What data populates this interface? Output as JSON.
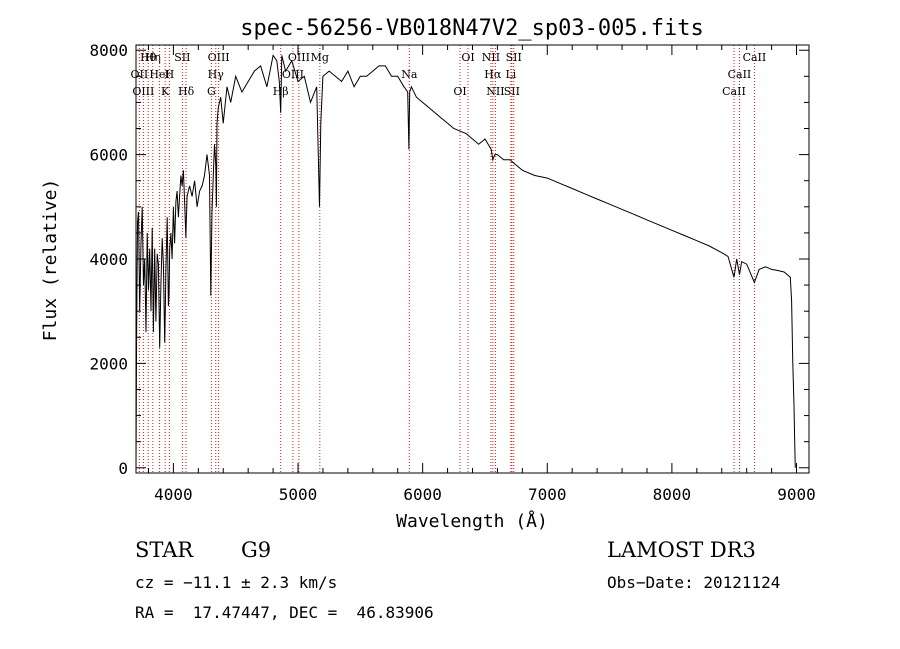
{
  "chart_data": {
    "type": "line",
    "title": "spec-56256-VB018N47V2_sp03-005.fits",
    "xlabel": "Wavelength (Å)",
    "ylabel": "Flux (relative)",
    "xlim": [
      3700,
      9100
    ],
    "ylim": [
      -100,
      8100
    ],
    "xticks": [
      4000,
      5000,
      6000,
      7000,
      8000,
      9000
    ],
    "yticks": [
      0,
      2000,
      4000,
      6000,
      8000
    ],
    "grid": false,
    "series": [
      {
        "name": "flux",
        "x": [
          3700,
          3705,
          3712,
          3720,
          3730,
          3740,
          3750,
          3760,
          3770,
          3780,
          3790,
          3800,
          3810,
          3820,
          3830,
          3840,
          3850,
          3860,
          3870,
          3880,
          3890,
          3900,
          3910,
          3920,
          3930,
          3935,
          3940,
          3950,
          3960,
          3965,
          3970,
          3980,
          3990,
          4000,
          4010,
          4020,
          4030,
          4040,
          4050,
          4060,
          4070,
          4080,
          4090,
          4100,
          4102,
          4110,
          4120,
          4130,
          4150,
          4170,
          4190,
          4210,
          4230,
          4250,
          4270,
          4290,
          4300,
          4310,
          4320,
          4330,
          4340,
          4345,
          4350,
          4360,
          4380,
          4400,
          4430,
          4460,
          4500,
          4550,
          4600,
          4650,
          4700,
          4750,
          4800,
          4830,
          4850,
          4861,
          4870,
          4900,
          4950,
          5000,
          5050,
          5100,
          5150,
          5172,
          5183,
          5200,
          5250,
          5300,
          5350,
          5400,
          5450,
          5500,
          5550,
          5600,
          5650,
          5700,
          5750,
          5800,
          5850,
          5880,
          5890,
          5896,
          5910,
          5950,
          6000,
          6050,
          6100,
          6150,
          6200,
          6250,
          6300,
          6350,
          6400,
          6450,
          6500,
          6550,
          6563,
          6580,
          6600,
          6650,
          6700,
          6750,
          6800,
          6900,
          7000,
          7100,
          7200,
          7300,
          7400,
          7500,
          7600,
          7700,
          7800,
          7900,
          8000,
          8100,
          8200,
          8300,
          8400,
          8450,
          8498,
          8520,
          8542,
          8560,
          8600,
          8662,
          8700,
          8750,
          8800,
          8850,
          8900,
          8950,
          8960,
          8970,
          8980,
          8985,
          8990
        ],
        "values": [
          0,
          2500,
          4700,
          4900,
          3000,
          4300,
          5000,
          3500,
          4000,
          2600,
          4500,
          3400,
          4200,
          3000,
          4600,
          2600,
          4200,
          2800,
          4100,
          3900,
          2300,
          3500,
          4400,
          3900,
          2400,
          3000,
          3800,
          4800,
          3100,
          3300,
          4200,
          4500,
          4000,
          5000,
          4300,
          5100,
          5300,
          4800,
          5200,
          5600,
          5400,
          5700,
          5100,
          4400,
          4600,
          5200,
          5300,
          5400,
          5200,
          5500,
          5000,
          5300,
          5400,
          5600,
          6000,
          5600,
          3300,
          4900,
          5600,
          6200,
          5800,
          5000,
          6600,
          6900,
          7100,
          6600,
          7300,
          7000,
          7500,
          7200,
          7400,
          7600,
          7700,
          7300,
          7900,
          7800,
          7400,
          6800,
          7900,
          7600,
          7800,
          7400,
          7500,
          7000,
          7300,
          5000,
          6600,
          7500,
          7600,
          7500,
          7400,
          7600,
          7300,
          7500,
          7500,
          7600,
          7700,
          7700,
          7500,
          7500,
          7300,
          7200,
          6100,
          7200,
          7300,
          7100,
          7000,
          6900,
          6800,
          6700,
          6600,
          6500,
          6450,
          6400,
          6300,
          6200,
          6300,
          6100,
          5900,
          6000,
          6000,
          5900,
          5900,
          5800,
          5700,
          5600,
          5550,
          5450,
          5350,
          5250,
          5150,
          5050,
          4950,
          4850,
          4750,
          4650,
          4550,
          4450,
          4350,
          4250,
          4120,
          4050,
          3650,
          4000,
          3700,
          3950,
          3900,
          3550,
          3800,
          3850,
          3800,
          3780,
          3750,
          3650,
          3200,
          2000,
          1200,
          500,
          0
        ]
      }
    ],
    "line_markers": [
      {
        "label": "Hθ",
        "x": 3798
      },
      {
        "label": "OII",
        "x": 3727
      },
      {
        "label": "OIII",
        "x": 3759
      },
      {
        "label": "Hη",
        "x": 3835
      },
      {
        "label": "HeI",
        "x": 3889
      },
      {
        "label": "K",
        "x": 3934
      },
      {
        "label": "SII",
        "x": 4072
      },
      {
        "label": "H",
        "x": 3968
      },
      {
        "label": "Hδ",
        "x": 4102
      },
      {
        "label": "OIII",
        "x": 4363
      },
      {
        "label": "Hγ",
        "x": 4340
      },
      {
        "label": "G",
        "x": 4305
      },
      {
        "label": "OIII",
        "x": 5007
      },
      {
        "label": "OIII",
        "x": 4959
      },
      {
        "label": "Hβ",
        "x": 4861
      },
      {
        "label": "Mg",
        "x": 5175
      },
      {
        "label": "Na",
        "x": 5893
      },
      {
        "label": "OI",
        "x": 6300
      },
      {
        "label": "OI",
        "x": 6364
      },
      {
        "label": "Hα",
        "x": 6563
      },
      {
        "label": "SII",
        "x": 6716
      },
      {
        "label": "NII",
        "x": 6548
      },
      {
        "label": "Li",
        "x": 6708
      },
      {
        "label": "NII",
        "x": 6584
      },
      {
        "label": "SII",
        "x": 6731
      },
      {
        "label": "CaII",
        "x": 8542
      },
      {
        "label": "CaII",
        "x": 8498
      },
      {
        "label": "CaII",
        "x": 8662
      }
    ]
  },
  "info": {
    "object_class": "STAR",
    "subclass": "G9",
    "survey": "LAMOST DR3",
    "redshift": "cz = −11.1 ± 2.3 km/s",
    "obs_date": "Obs−Date: 20121124",
    "coords": "RA =  17.47447, DEC =  46.83906"
  },
  "colors": {
    "line_marker": "#c81e1e",
    "spectrum": "#000000",
    "background": "#ffffff"
  }
}
